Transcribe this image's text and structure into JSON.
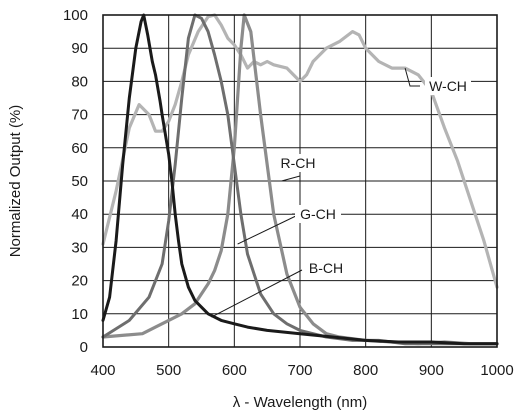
{
  "chart_data": {
    "type": "line",
    "xlabel": "λ - Wavelength (nm)",
    "ylabel": "Normalized Output (%)",
    "xlim": [
      400,
      1000
    ],
    "ylim": [
      0,
      100
    ],
    "xticks": [
      "400",
      "500",
      "600",
      "700",
      "800",
      "900",
      "1000"
    ],
    "yticks": [
      "0",
      "10",
      "20",
      "30",
      "40",
      "50",
      "60",
      "70",
      "80",
      "90",
      "100"
    ],
    "grid": true,
    "colors": {
      "W-CH": "#b4b4b4",
      "R-CH": "#8c8c8c",
      "G-CH": "#6e6e6e",
      "B-CH": "#1a1a1a"
    },
    "series": [
      {
        "name": "W-CH",
        "x": [
          400,
          420,
          440,
          455,
          470,
          480,
          490,
          500,
          510,
          520,
          530,
          545,
          560,
          570,
          580,
          590,
          600,
          610,
          620,
          630,
          640,
          650,
          660,
          680,
          700,
          710,
          720,
          740,
          760,
          780,
          790,
          800,
          820,
          840,
          860,
          880,
          900,
          920,
          940,
          960,
          980,
          1000
        ],
        "y": [
          31,
          47,
          66,
          73,
          70,
          65,
          65,
          68,
          73,
          80,
          88,
          95,
          99.5,
          100,
          97,
          93,
          91,
          88,
          84,
          86,
          85,
          86,
          85,
          84,
          80,
          82,
          86,
          90,
          92,
          95,
          94,
          90,
          86,
          84,
          84,
          82,
          77,
          66,
          56,
          44,
          32,
          18
        ]
      },
      {
        "name": "R-CH",
        "x": [
          400,
          460,
          480,
          500,
          520,
          540,
          560,
          570,
          580,
          590,
          600,
          610,
          615,
          625,
          640,
          660,
          680,
          700,
          720,
          740,
          760,
          780,
          800,
          840,
          880,
          920,
          960,
          1000
        ],
        "y": [
          3,
          4,
          6,
          8,
          10,
          13,
          19,
          23,
          29,
          40,
          60,
          90,
          100,
          95,
          70,
          40,
          22,
          12,
          7,
          4,
          3,
          2.5,
          2,
          1.5,
          1,
          1.5,
          1,
          1
        ]
      },
      {
        "name": "G-CH",
        "x": [
          400,
          440,
          470,
          490,
          500,
          510,
          520,
          530,
          540,
          550,
          560,
          570,
          580,
          590,
          600,
          610,
          620,
          640,
          660,
          680,
          700,
          740,
          780,
          820,
          860,
          900,
          950,
          1000
        ],
        "y": [
          3,
          8,
          15,
          25,
          38,
          55,
          75,
          93,
          100,
          99,
          95,
          88,
          80,
          70,
          55,
          40,
          28,
          16,
          10,
          7,
          5,
          3,
          2,
          2,
          1,
          1,
          1,
          1
        ]
      },
      {
        "name": "B-CH",
        "x": [
          400,
          410,
          420,
          430,
          440,
          450,
          458,
          462,
          468,
          475,
          480,
          487,
          490,
          500,
          505,
          510,
          515,
          520,
          530,
          540,
          550,
          560,
          580,
          600,
          620,
          650,
          700,
          750,
          800,
          850,
          900,
          950,
          1000
        ],
        "y": [
          8,
          15,
          32,
          55,
          75,
          90,
          98,
          100,
          94,
          86,
          82,
          74,
          70,
          58,
          50,
          40,
          32,
          25,
          18,
          14,
          12,
          10,
          8,
          7,
          6,
          5,
          4,
          3,
          2,
          1.5,
          1.5,
          1,
          1
        ]
      }
    ],
    "annotations": [
      {
        "text": "W-CH",
        "series": "W-CH",
        "at": [
          860,
          84
        ]
      },
      {
        "text": "R-CH",
        "series": "R-CH",
        "at": [
          672,
          50
        ]
      },
      {
        "text": "G-CH",
        "series": "G-CH",
        "at": [
          605,
          31
        ]
      },
      {
        "text": "B-CH",
        "series": "B-CH",
        "at": [
          565,
          9
        ]
      }
    ]
  }
}
